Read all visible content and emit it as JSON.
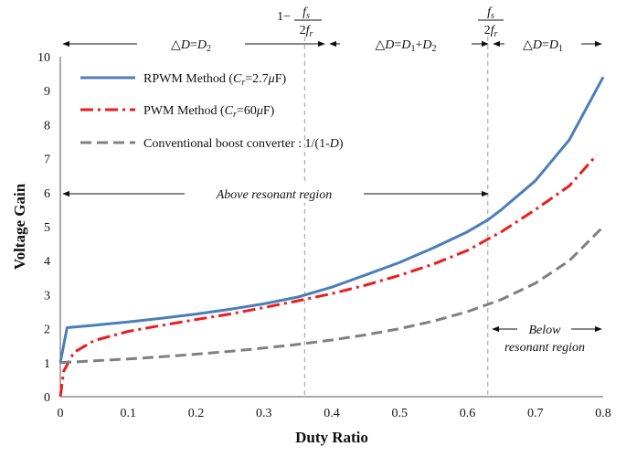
{
  "chart_data": {
    "type": "line",
    "xlabel": "Duty Ratio",
    "ylabel": "Voltage Gain",
    "xlim": [
      0,
      0.8
    ],
    "ylim": [
      0,
      10
    ],
    "x_ticks": [
      "0",
      "0.1",
      "0.2",
      "0.3",
      "0.4",
      "0.5",
      "0.6",
      "0.7",
      "0.8"
    ],
    "y_ticks": [
      "0",
      "1",
      "2",
      "3",
      "4",
      "5",
      "6",
      "7",
      "8",
      "9",
      "10"
    ],
    "grid": false,
    "legend_position": "top-left",
    "series": [
      {
        "name": "RPWM Method (Cr=2.7μF)",
        "legend_parts": [
          "RPWM Method (",
          "C",
          "r",
          "=2.7",
          "μ",
          "F)"
        ],
        "color": "#4a7ebb",
        "style": "solid",
        "points": [
          [
            0.0,
            1.0
          ],
          [
            0.01,
            2.03
          ],
          [
            0.05,
            2.1
          ],
          [
            0.1,
            2.2
          ],
          [
            0.15,
            2.31
          ],
          [
            0.2,
            2.43
          ],
          [
            0.25,
            2.57
          ],
          [
            0.3,
            2.73
          ],
          [
            0.35,
            2.93
          ],
          [
            0.4,
            3.22
          ],
          [
            0.45,
            3.58
          ],
          [
            0.5,
            3.95
          ],
          [
            0.55,
            4.38
          ],
          [
            0.6,
            4.85
          ],
          [
            0.63,
            5.2
          ],
          [
            0.65,
            5.5
          ],
          [
            0.7,
            6.35
          ],
          [
            0.75,
            7.55
          ],
          [
            0.8,
            9.4
          ]
        ]
      },
      {
        "name": "PWM Method (Cr=60μF)",
        "legend_parts": [
          "PWM Method (",
          "C",
          "r",
          "=60",
          "μ",
          "F)"
        ],
        "color": "#ee1c1c",
        "style": "dashdot",
        "points": [
          [
            0.0,
            0.0
          ],
          [
            0.005,
            0.75
          ],
          [
            0.02,
            1.3
          ],
          [
            0.05,
            1.65
          ],
          [
            0.1,
            1.92
          ],
          [
            0.15,
            2.1
          ],
          [
            0.2,
            2.27
          ],
          [
            0.25,
            2.43
          ],
          [
            0.3,
            2.62
          ],
          [
            0.35,
            2.82
          ],
          [
            0.4,
            3.03
          ],
          [
            0.45,
            3.28
          ],
          [
            0.5,
            3.57
          ],
          [
            0.55,
            3.9
          ],
          [
            0.6,
            4.3
          ],
          [
            0.65,
            4.85
          ],
          [
            0.7,
            5.5
          ],
          [
            0.75,
            6.2
          ],
          [
            0.79,
            7.1
          ]
        ]
      },
      {
        "name": "Conventional boost converter : 1/(1-D)",
        "legend_parts": [
          "Conventional boost converter : 1/(1-",
          "D",
          ")"
        ],
        "color": "#808080",
        "style": "dashed",
        "points": [
          [
            0.0,
            1.0
          ],
          [
            0.05,
            1.053
          ],
          [
            0.1,
            1.111
          ],
          [
            0.15,
            1.176
          ],
          [
            0.2,
            1.25
          ],
          [
            0.25,
            1.333
          ],
          [
            0.3,
            1.429
          ],
          [
            0.35,
            1.538
          ],
          [
            0.4,
            1.667
          ],
          [
            0.45,
            1.818
          ],
          [
            0.5,
            2.0
          ],
          [
            0.55,
            2.222
          ],
          [
            0.6,
            2.5
          ],
          [
            0.65,
            2.857
          ],
          [
            0.7,
            3.333
          ],
          [
            0.75,
            4.0
          ],
          [
            0.8,
            5.0
          ]
        ]
      }
    ],
    "vertical_lines": [
      {
        "x": 0.36,
        "label_top": [
          "1−",
          "f",
          "s",
          "2",
          "f",
          "r"
        ]
      },
      {
        "x": 0.63,
        "label_top": [
          "f",
          "s",
          "2",
          "f",
          "r"
        ]
      }
    ],
    "region_labels": {
      "r1": {
        "parts": [
          "△",
          "D",
          "=",
          "D",
          "2"
        ]
      },
      "r2": {
        "parts": [
          "△",
          "D",
          "=",
          "D",
          "1",
          "+",
          "D",
          "2"
        ]
      },
      "r3": {
        "parts": [
          "△",
          "D",
          "=",
          "D",
          "1"
        ]
      }
    },
    "annotations": {
      "above": "Above resonant region",
      "below_line1": "Below",
      "below_line2": "resonant region"
    }
  }
}
